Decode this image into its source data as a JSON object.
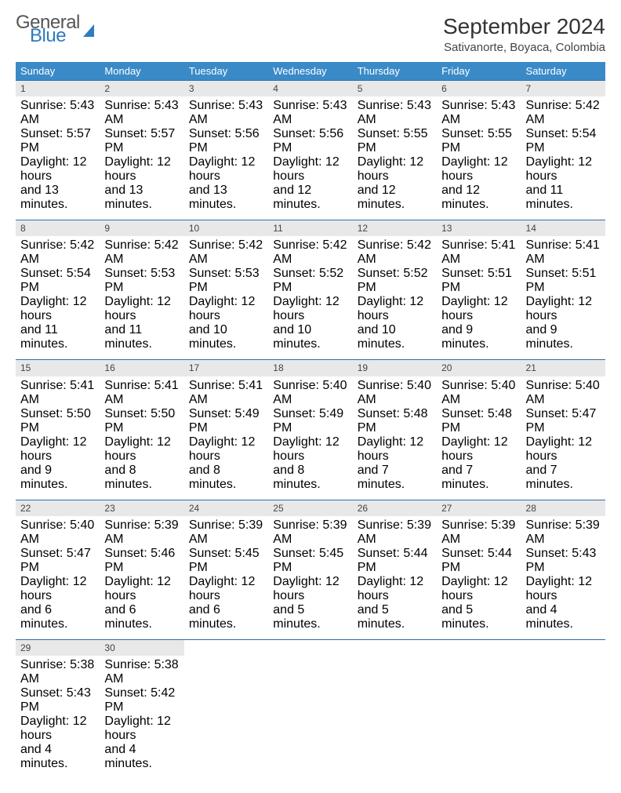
{
  "logo": {
    "word1": "General",
    "word2": "Blue"
  },
  "title": "September 2024",
  "location": "Sativanorte, Boyaca, Colombia",
  "colors": {
    "header_bg": "#3a8ac8",
    "header_text": "#ffffff",
    "row_border": "#2f6fa8",
    "daynum_bg": "#e8e8e8",
    "page_bg": "#ffffff",
    "logo_blue": "#2f7bbf",
    "body_text": "#222222"
  },
  "day_headers": [
    "Sunday",
    "Monday",
    "Tuesday",
    "Wednesday",
    "Thursday",
    "Friday",
    "Saturday"
  ],
  "weeks": [
    [
      {
        "n": "1",
        "sr": "5:43 AM",
        "ss": "5:57 PM",
        "dh": "12",
        "dm": "13"
      },
      {
        "n": "2",
        "sr": "5:43 AM",
        "ss": "5:57 PM",
        "dh": "12",
        "dm": "13"
      },
      {
        "n": "3",
        "sr": "5:43 AM",
        "ss": "5:56 PM",
        "dh": "12",
        "dm": "13"
      },
      {
        "n": "4",
        "sr": "5:43 AM",
        "ss": "5:56 PM",
        "dh": "12",
        "dm": "12"
      },
      {
        "n": "5",
        "sr": "5:43 AM",
        "ss": "5:55 PM",
        "dh": "12",
        "dm": "12"
      },
      {
        "n": "6",
        "sr": "5:43 AM",
        "ss": "5:55 PM",
        "dh": "12",
        "dm": "12"
      },
      {
        "n": "7",
        "sr": "5:42 AM",
        "ss": "5:54 PM",
        "dh": "12",
        "dm": "11"
      }
    ],
    [
      {
        "n": "8",
        "sr": "5:42 AM",
        "ss": "5:54 PM",
        "dh": "12",
        "dm": "11"
      },
      {
        "n": "9",
        "sr": "5:42 AM",
        "ss": "5:53 PM",
        "dh": "12",
        "dm": "11"
      },
      {
        "n": "10",
        "sr": "5:42 AM",
        "ss": "5:53 PM",
        "dh": "12",
        "dm": "10"
      },
      {
        "n": "11",
        "sr": "5:42 AM",
        "ss": "5:52 PM",
        "dh": "12",
        "dm": "10"
      },
      {
        "n": "12",
        "sr": "5:42 AM",
        "ss": "5:52 PM",
        "dh": "12",
        "dm": "10"
      },
      {
        "n": "13",
        "sr": "5:41 AM",
        "ss": "5:51 PM",
        "dh": "12",
        "dm": "9"
      },
      {
        "n": "14",
        "sr": "5:41 AM",
        "ss": "5:51 PM",
        "dh": "12",
        "dm": "9"
      }
    ],
    [
      {
        "n": "15",
        "sr": "5:41 AM",
        "ss": "5:50 PM",
        "dh": "12",
        "dm": "9"
      },
      {
        "n": "16",
        "sr": "5:41 AM",
        "ss": "5:50 PM",
        "dh": "12",
        "dm": "8"
      },
      {
        "n": "17",
        "sr": "5:41 AM",
        "ss": "5:49 PM",
        "dh": "12",
        "dm": "8"
      },
      {
        "n": "18",
        "sr": "5:40 AM",
        "ss": "5:49 PM",
        "dh": "12",
        "dm": "8"
      },
      {
        "n": "19",
        "sr": "5:40 AM",
        "ss": "5:48 PM",
        "dh": "12",
        "dm": "7"
      },
      {
        "n": "20",
        "sr": "5:40 AM",
        "ss": "5:48 PM",
        "dh": "12",
        "dm": "7"
      },
      {
        "n": "21",
        "sr": "5:40 AM",
        "ss": "5:47 PM",
        "dh": "12",
        "dm": "7"
      }
    ],
    [
      {
        "n": "22",
        "sr": "5:40 AM",
        "ss": "5:47 PM",
        "dh": "12",
        "dm": "6"
      },
      {
        "n": "23",
        "sr": "5:39 AM",
        "ss": "5:46 PM",
        "dh": "12",
        "dm": "6"
      },
      {
        "n": "24",
        "sr": "5:39 AM",
        "ss": "5:45 PM",
        "dh": "12",
        "dm": "6"
      },
      {
        "n": "25",
        "sr": "5:39 AM",
        "ss": "5:45 PM",
        "dh": "12",
        "dm": "5"
      },
      {
        "n": "26",
        "sr": "5:39 AM",
        "ss": "5:44 PM",
        "dh": "12",
        "dm": "5"
      },
      {
        "n": "27",
        "sr": "5:39 AM",
        "ss": "5:44 PM",
        "dh": "12",
        "dm": "5"
      },
      {
        "n": "28",
        "sr": "5:39 AM",
        "ss": "5:43 PM",
        "dh": "12",
        "dm": "4"
      }
    ],
    [
      {
        "n": "29",
        "sr": "5:38 AM",
        "ss": "5:43 PM",
        "dh": "12",
        "dm": "4"
      },
      {
        "n": "30",
        "sr": "5:38 AM",
        "ss": "5:42 PM",
        "dh": "12",
        "dm": "4"
      },
      null,
      null,
      null,
      null,
      null
    ]
  ],
  "labels": {
    "sunrise": "Sunrise:",
    "sunset": "Sunset:",
    "daylight": "Daylight:",
    "hours": "hours",
    "and": "and",
    "minutes": "minutes."
  }
}
